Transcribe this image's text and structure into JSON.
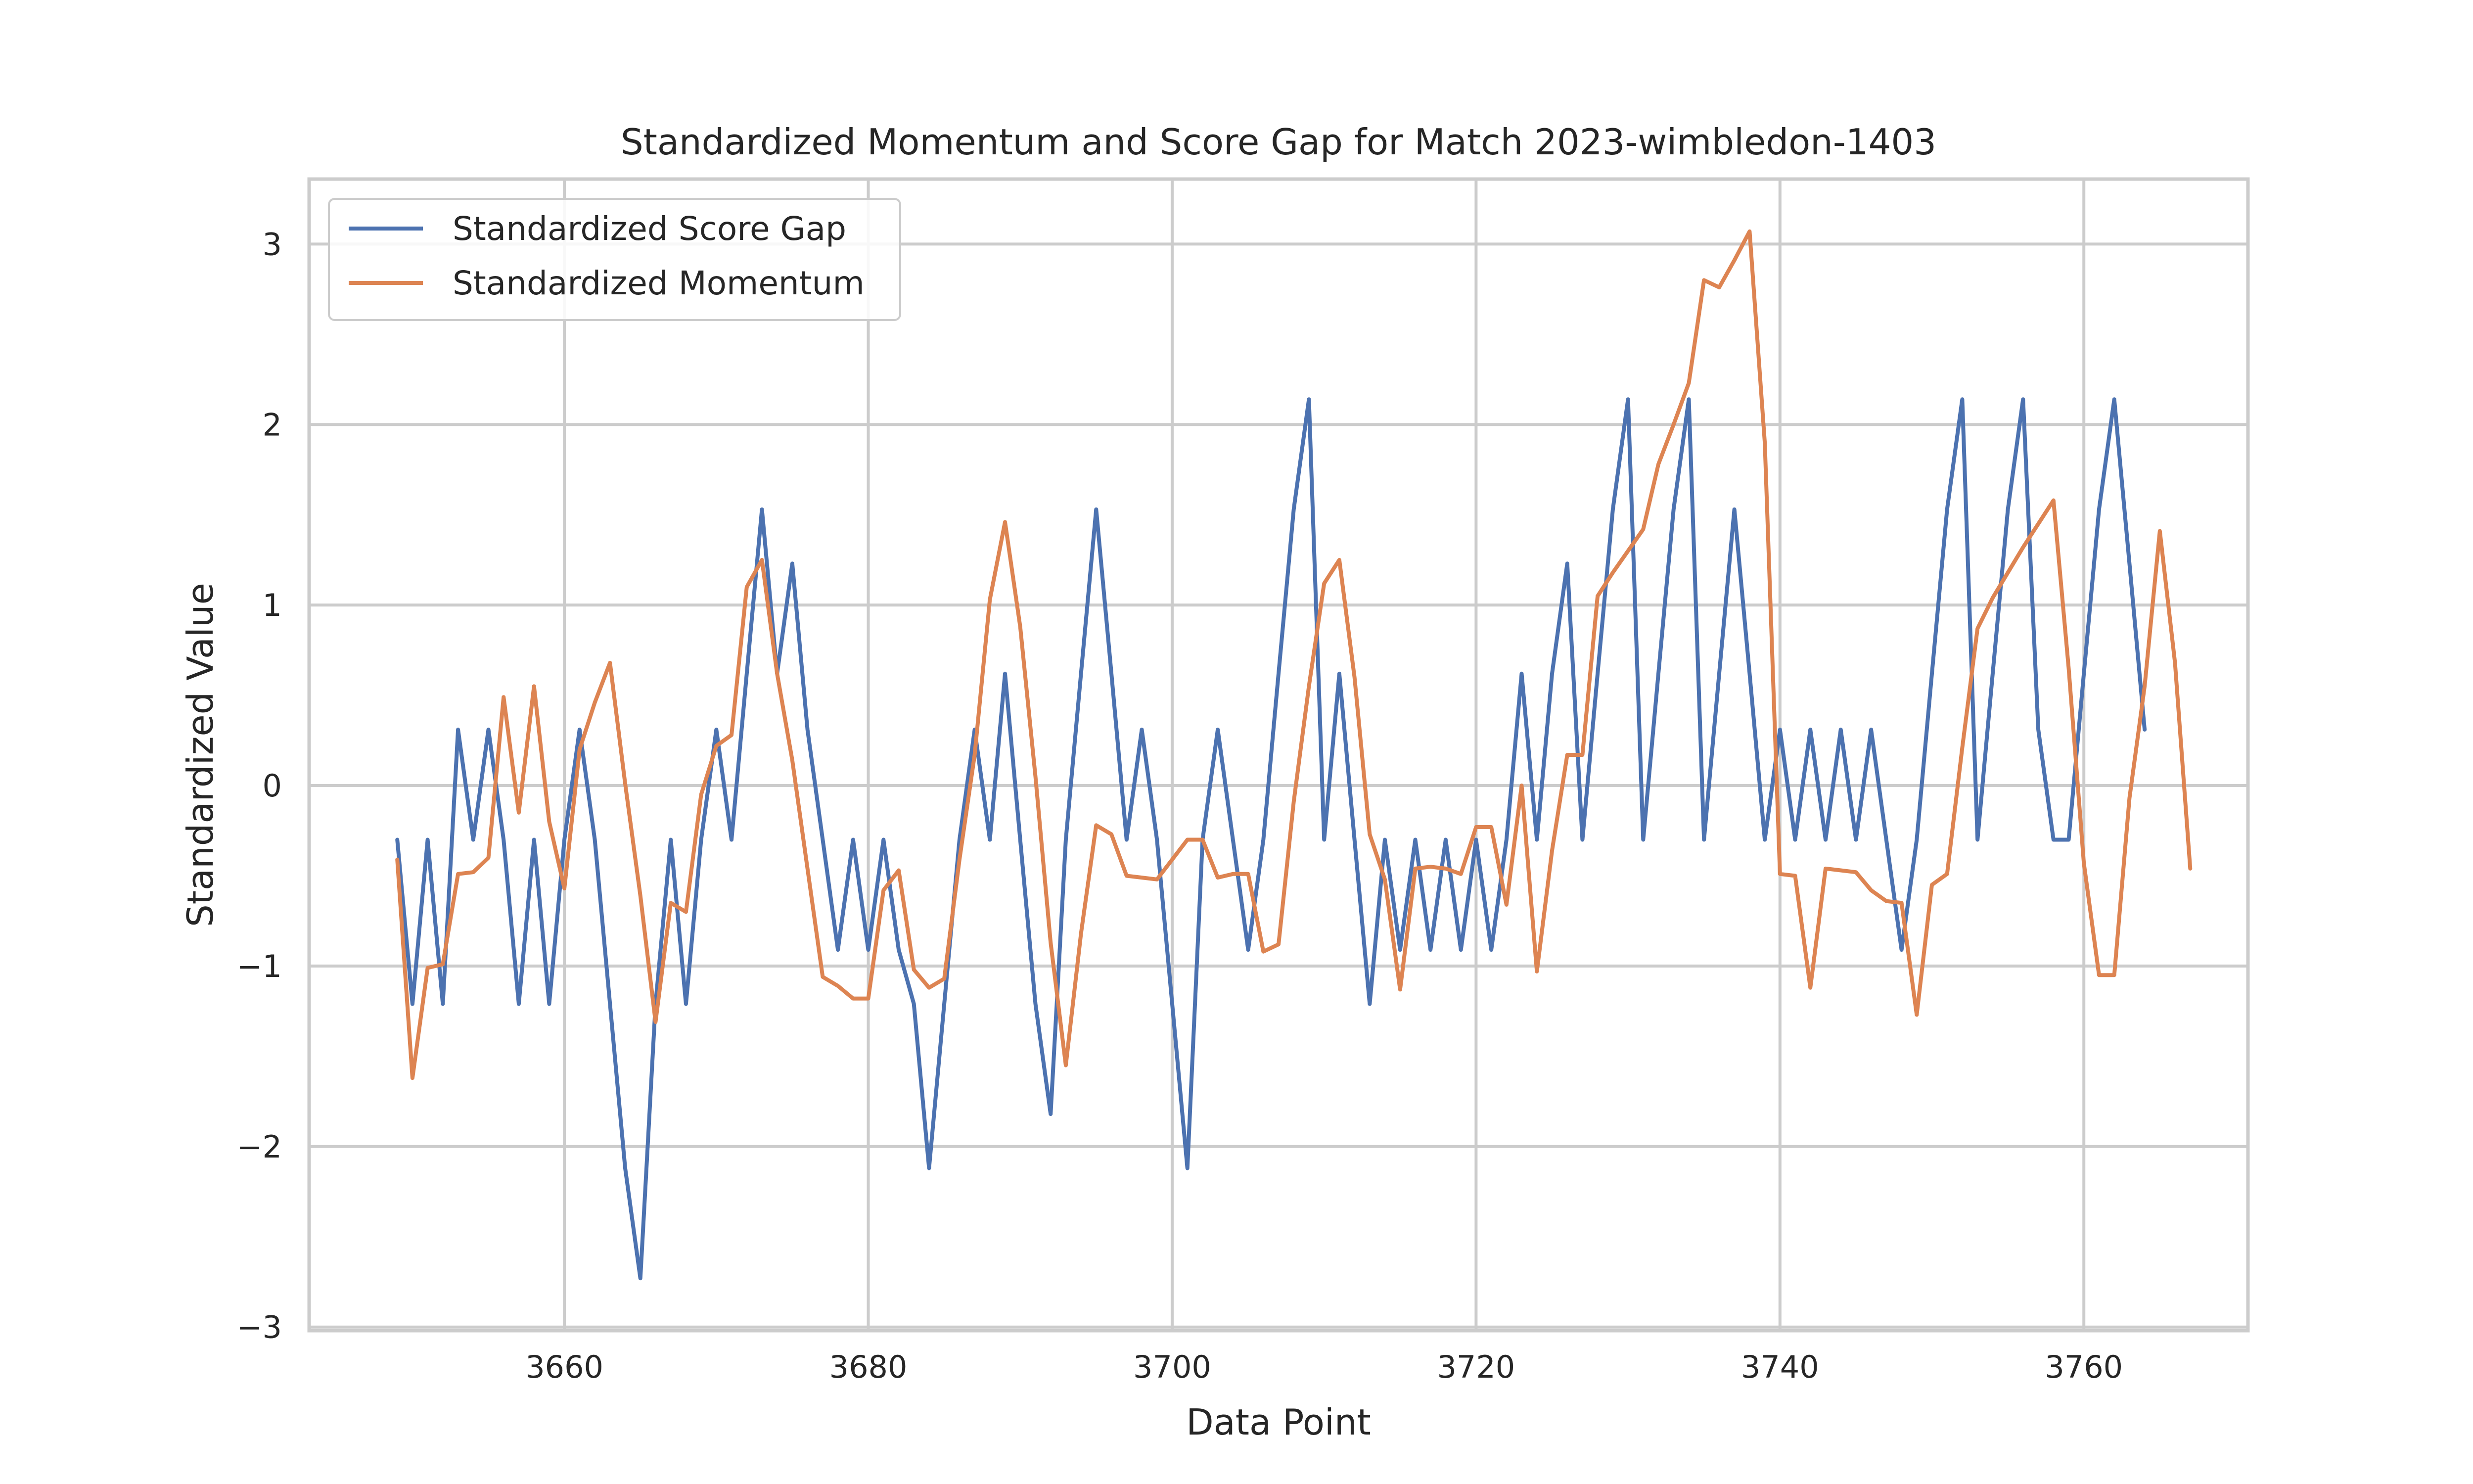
{
  "chart_data": {
    "type": "line",
    "title": "Standardized Momentum and Score Gap for Match 2023-wimbledon-1403",
    "xlabel": "Data Point",
    "ylabel": "Standardized Value",
    "xlim": [
      3643.2,
      3770.8
    ],
    "ylim": [
      -3.02,
      3.36
    ],
    "xticks": [
      3660,
      3680,
      3700,
      3720,
      3740,
      3760
    ],
    "xtick_labels": [
      "3660",
      "3680",
      "3700",
      "3720",
      "3740",
      "3760"
    ],
    "yticks": [
      -3,
      -2,
      -1,
      0,
      1,
      2,
      3
    ],
    "ytick_labels": [
      "−3",
      "−2",
      "−1",
      "0",
      "1",
      "2",
      "3"
    ],
    "grid": true,
    "legend": "top-left",
    "x_start": 3649,
    "series": [
      {
        "name": "Standardized Score Gap",
        "color": "#4c72b0",
        "values": [
          -0.3,
          -1.21,
          -0.3,
          -1.21,
          0.31,
          -0.3,
          0.31,
          -0.3,
          -1.21,
          -0.3,
          -1.21,
          -0.3,
          0.31,
          -0.3,
          -1.21,
          -2.12,
          -2.73,
          -1.21,
          -0.3,
          -1.21,
          -0.3,
          0.31,
          -0.3,
          0.62,
          1.53,
          0.62,
          1.23,
          0.31,
          -0.3,
          -0.91,
          -0.3,
          -0.91,
          -0.3,
          -0.91,
          -1.21,
          -2.12,
          -1.21,
          -0.3,
          0.31,
          -0.3,
          0.62,
          -0.3,
          -1.21,
          -1.82,
          -0.3,
          0.62,
          1.53,
          0.62,
          -0.3,
          0.31,
          -0.3,
          -1.21,
          -2.12,
          -0.3,
          0.31,
          -0.3,
          -0.91,
          -0.3,
          0.62,
          1.53,
          2.14,
          -0.3,
          0.62,
          -0.3,
          -1.21,
          -0.3,
          -0.91,
          -0.3,
          -0.91,
          -0.3,
          -0.91,
          -0.3,
          -0.91,
          -0.3,
          0.62,
          -0.3,
          0.62,
          1.23,
          -0.3,
          0.62,
          1.53,
          2.14,
          -0.3,
          0.62,
          1.53,
          2.14,
          -0.3,
          0.62,
          1.53,
          0.62,
          -0.3,
          0.31,
          -0.3,
          0.31,
          -0.3,
          0.31,
          -0.3,
          0.31,
          -0.3,
          -0.91,
          -0.3,
          0.62,
          1.53,
          2.14,
          -0.3,
          0.62,
          1.53,
          2.14,
          0.31,
          -0.3,
          -0.3,
          0.62,
          1.53,
          2.14,
          1.23,
          0.31
        ]
      },
      {
        "name": "Standardized Momentum",
        "color": "#dd8452",
        "values": [
          -0.41,
          -1.62,
          -1.01,
          -0.99,
          -0.49,
          -0.48,
          -0.4,
          0.49,
          -0.15,
          0.55,
          -0.2,
          -0.57,
          0.2,
          0.46,
          0.68,
          0.01,
          -0.61,
          -1.31,
          -0.65,
          -0.7,
          -0.05,
          0.22,
          0.28,
          1.1,
          1.25,
          0.62,
          0.14,
          -0.46,
          -1.06,
          -1.11,
          -1.18,
          -1.18,
          -0.58,
          -0.47,
          -1.02,
          -1.12,
          -1.07,
          -0.41,
          0.17,
          1.03,
          1.46,
          0.88,
          0.05,
          -0.87,
          -1.55,
          -0.82,
          -0.22,
          -0.27,
          -0.5,
          -0.51,
          -0.52,
          -0.41,
          -0.3,
          -0.3,
          -0.51,
          -0.49,
          -0.49,
          -0.92,
          -0.88,
          -0.09,
          0.55,
          1.12,
          1.25,
          0.6,
          -0.27,
          -0.52,
          -1.13,
          -0.46,
          -0.45,
          -0.46,
          -0.49,
          -0.23,
          -0.23,
          -0.66,
          0.0,
          -1.03,
          -0.36,
          0.17,
          0.17,
          1.05,
          1.18,
          1.3,
          1.42,
          1.78,
          2.0,
          2.23,
          2.8,
          2.76,
          2.91,
          3.07,
          1.9,
          -0.49,
          -0.5,
          -1.12,
          -0.46,
          -0.47,
          -0.48,
          -0.58,
          -0.64,
          -0.65,
          -1.27,
          -0.55,
          -0.49,
          0.21,
          0.87,
          1.04,
          1.18,
          1.32,
          1.45,
          1.58,
          0.65,
          -0.43,
          -1.05,
          -1.05,
          -0.07,
          0.55,
          1.41,
          0.68,
          -0.46
        ]
      }
    ]
  }
}
